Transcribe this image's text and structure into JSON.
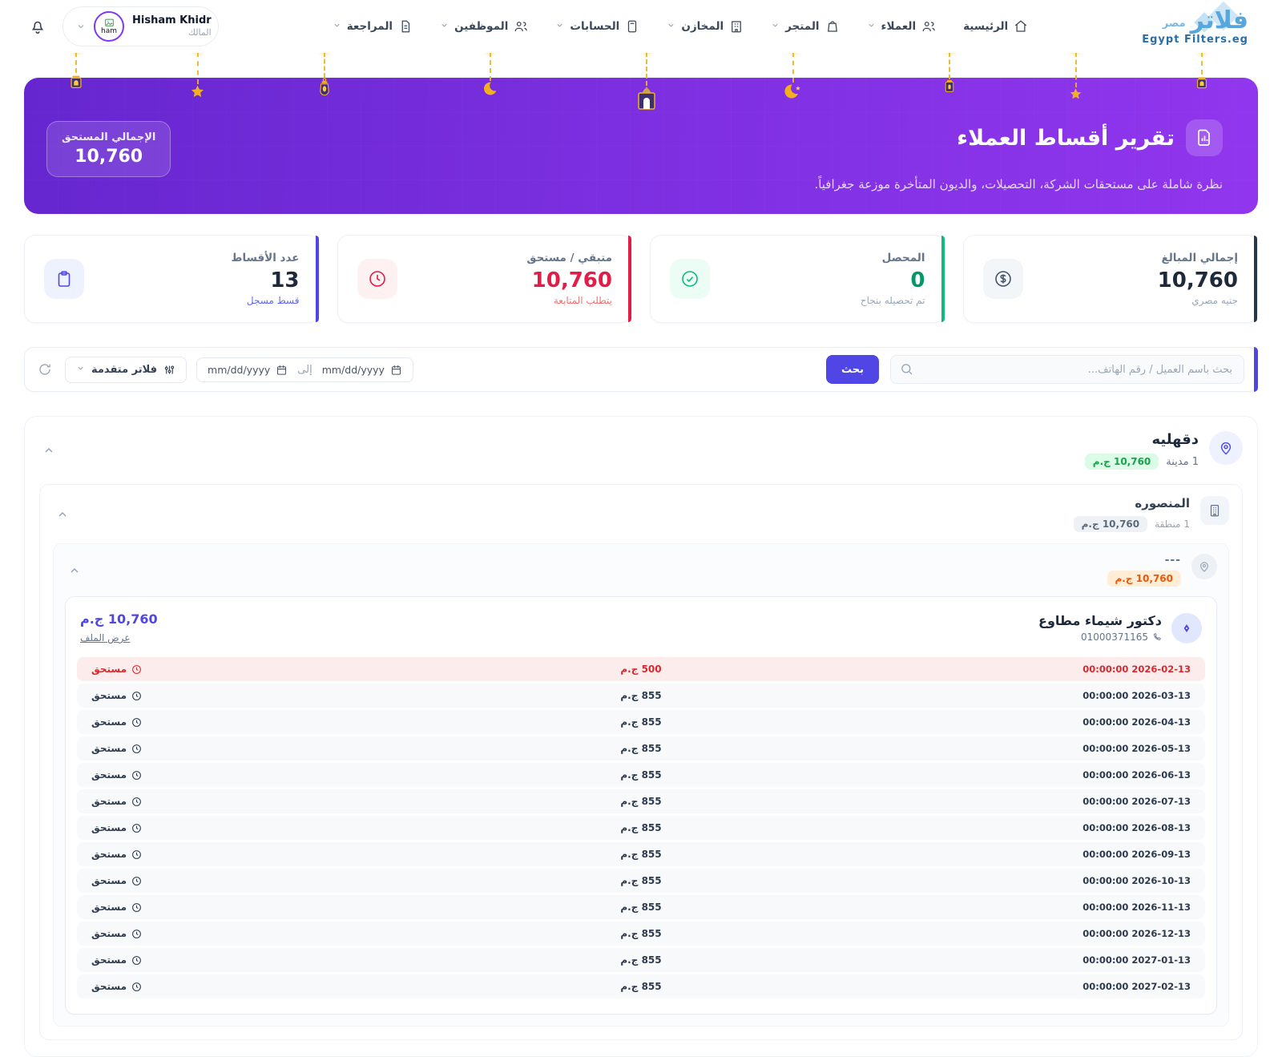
{
  "brand": {
    "logo_main": "فلاتر",
    "logo_sub": "مصر",
    "logo_caption": "Egypt Filters.eg"
  },
  "user": {
    "name": "Hisham Khidr",
    "role": "المالك",
    "avatar_text": "ham"
  },
  "nav": {
    "items": [
      {
        "label": "الرئيسية",
        "icon": "home-icon"
      },
      {
        "label": "العملاء",
        "icon": "customers-icon"
      },
      {
        "label": "المتجر",
        "icon": "store-icon"
      },
      {
        "label": "المخازن",
        "icon": "warehouses-icon"
      },
      {
        "label": "الحسابات",
        "icon": "accounts-icon"
      },
      {
        "label": "الموظفين",
        "icon": "employees-icon"
      },
      {
        "label": "المراجعة",
        "icon": "review-icon"
      }
    ]
  },
  "banner": {
    "title": "تقرير أقساط العملاء",
    "subtitle": "نظرة شاملة على مستحقات الشركة، التحصيلات، والديون المتأخرة موزعة جغرافياً.",
    "total_label": "الإجمالي المستحق",
    "total_value": "10,760"
  },
  "stats": [
    {
      "label": "إجمالي المبالغ",
      "value": "10,760",
      "caption": "جنيه مصري",
      "accent": "#27364b"
    },
    {
      "label": "المحصل",
      "value": "0",
      "caption": "تم تحصيله بنجاح",
      "accent": "#10b981"
    },
    {
      "label": "متبقي / مستحق",
      "value": "10,760",
      "caption": "يتطلب المتابعة",
      "accent": "#e11d48"
    },
    {
      "label": "عدد الأقساط",
      "value": "13",
      "caption": "قسط مسجل",
      "accent": "#4f46e5"
    }
  ],
  "filters": {
    "search_placeholder": "بحث باسم العميل / رقم الهاتف...",
    "search_button": "بحث",
    "date_placeholder": "mm/dd/yyyy",
    "to_label": "إلى",
    "advanced_label": "فلاتر متقدمة"
  },
  "geo": {
    "region": {
      "name": "دقهليه",
      "count": "1 مدينة",
      "badge": "10,760 ج.م"
    },
    "city": {
      "name": "المنصوره",
      "count": "1 منطقة",
      "badge": "10,760 ج.م"
    },
    "zone": {
      "name": "---",
      "badge": "10,760 ج.م"
    }
  },
  "customer": {
    "name": "دكتور شيماء مطاوع",
    "phone": "01000371165",
    "amount": "10,760 ج.م",
    "view_file": "عرض الملف"
  },
  "installments": {
    "status_label": "مستحق",
    "rows": [
      {
        "datetime": "00:00:00 2026-02-13",
        "amount": "500 ج.م",
        "overdue": true
      },
      {
        "datetime": "00:00:00 2026-03-13",
        "amount": "855 ج.م",
        "overdue": false
      },
      {
        "datetime": "00:00:00 2026-04-13",
        "amount": "855 ج.م",
        "overdue": false
      },
      {
        "datetime": "00:00:00 2026-05-13",
        "amount": "855 ج.م",
        "overdue": false
      },
      {
        "datetime": "00:00:00 2026-06-13",
        "amount": "855 ج.م",
        "overdue": false
      },
      {
        "datetime": "00:00:00 2026-07-13",
        "amount": "855 ج.م",
        "overdue": false
      },
      {
        "datetime": "00:00:00 2026-08-13",
        "amount": "855 ج.م",
        "overdue": false
      },
      {
        "datetime": "00:00:00 2026-09-13",
        "amount": "855 ج.م",
        "overdue": false
      },
      {
        "datetime": "00:00:00 2026-10-13",
        "amount": "855 ج.م",
        "overdue": false
      },
      {
        "datetime": "00:00:00 2026-11-13",
        "amount": "855 ج.م",
        "overdue": false
      },
      {
        "datetime": "00:00:00 2026-12-13",
        "amount": "855 ج.م",
        "overdue": false
      },
      {
        "datetime": "00:00:00 2027-01-13",
        "amount": "855 ج.م",
        "overdue": false
      },
      {
        "datetime": "00:00:00 2027-02-13",
        "amount": "855 ج.م",
        "overdue": false
      }
    ]
  },
  "colors": {
    "primary_indigo": "#4f46e5",
    "banner_gradient_start": "#6526cf",
    "banner_gradient_end": "#9136ee",
    "success_green": "#10b981",
    "danger_red": "#e11d48",
    "overdue_row_bg": "#fdecec",
    "overdue_text": "#d7282f",
    "badge_green_bg": "#dcfce7",
    "badge_orange_bg": "#ffedd5",
    "gold_decoration": "#f2b01e"
  }
}
